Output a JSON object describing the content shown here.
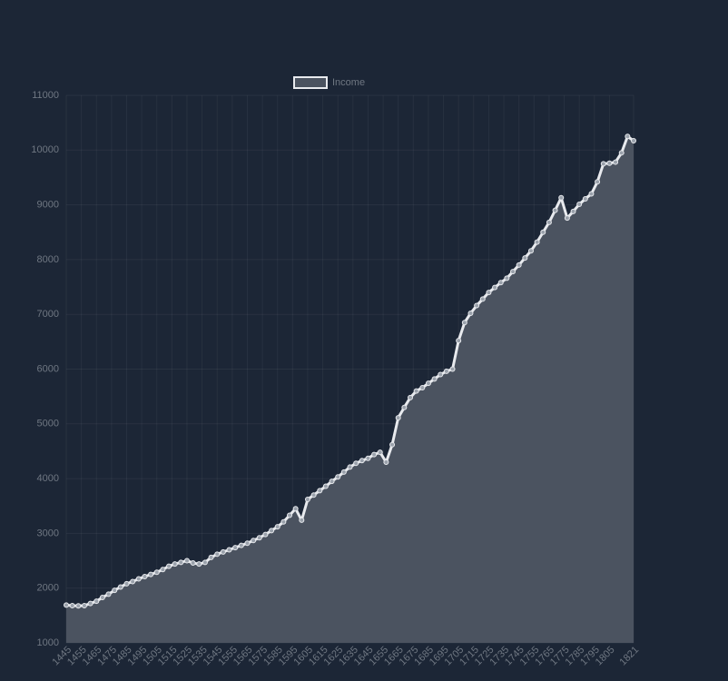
{
  "chart_data": {
    "type": "line",
    "x": [
      1445,
      1449,
      1453,
      1457,
      1461,
      1465,
      1469,
      1473,
      1477,
      1481,
      1485,
      1489,
      1493,
      1497,
      1501,
      1505,
      1509,
      1513,
      1517,
      1521,
      1525,
      1529,
      1533,
      1537,
      1541,
      1545,
      1549,
      1553,
      1557,
      1561,
      1565,
      1569,
      1573,
      1577,
      1581,
      1585,
      1589,
      1593,
      1597,
      1601,
      1605,
      1609,
      1613,
      1617,
      1621,
      1625,
      1629,
      1633,
      1637,
      1641,
      1645,
      1649,
      1653,
      1657,
      1661,
      1665,
      1669,
      1673,
      1677,
      1681,
      1685,
      1689,
      1693,
      1697,
      1701,
      1705,
      1709,
      1713,
      1717,
      1721,
      1725,
      1729,
      1733,
      1737,
      1741,
      1745,
      1749,
      1753,
      1757,
      1761,
      1765,
      1769,
      1773,
      1777,
      1781,
      1785,
      1789,
      1793,
      1797,
      1801,
      1805,
      1809,
      1813,
      1817,
      1821
    ],
    "series": [
      {
        "name": "Income",
        "color": "#e8eaee",
        "fill_color": "#4b5360",
        "values": [
          1690,
          1680,
          1675,
          1680,
          1720,
          1760,
          1830,
          1890,
          1960,
          2020,
          2080,
          2120,
          2170,
          2210,
          2250,
          2290,
          2340,
          2400,
          2440,
          2470,
          2500,
          2460,
          2440,
          2470,
          2560,
          2620,
          2660,
          2700,
          2740,
          2780,
          2820,
          2870,
          2920,
          2980,
          3050,
          3120,
          3210,
          3330,
          3450,
          3240,
          3620,
          3700,
          3780,
          3860,
          3950,
          4030,
          4120,
          4210,
          4280,
          4330,
          4370,
          4440,
          4480,
          4300,
          4620,
          5110,
          5300,
          5480,
          5600,
          5660,
          5740,
          5820,
          5900,
          5960,
          6000,
          6520,
          6850,
          7020,
          7160,
          7280,
          7400,
          7490,
          7580,
          7660,
          7780,
          7900,
          8030,
          8160,
          8320,
          8500,
          8680,
          8900,
          9130,
          8760,
          8880,
          9010,
          9110,
          9200,
          9420,
          9750,
          9760,
          9780,
          9950,
          10250,
          10170
        ]
      }
    ],
    "xlim": [
      1445,
      1821
    ],
    "xticks": [
      1445,
      1455,
      1465,
      1475,
      1485,
      1495,
      1505,
      1515,
      1525,
      1535,
      1545,
      1555,
      1565,
      1575,
      1585,
      1595,
      1605,
      1615,
      1625,
      1635,
      1645,
      1655,
      1665,
      1675,
      1685,
      1695,
      1705,
      1715,
      1725,
      1735,
      1745,
      1755,
      1765,
      1775,
      1785,
      1795,
      1805,
      1821
    ],
    "ylim": [
      1000,
      11000
    ],
    "yticks": [
      1000,
      2000,
      3000,
      4000,
      5000,
      6000,
      7000,
      8000,
      9000,
      10000,
      11000
    ],
    "grid": true,
    "legend": "top"
  }
}
